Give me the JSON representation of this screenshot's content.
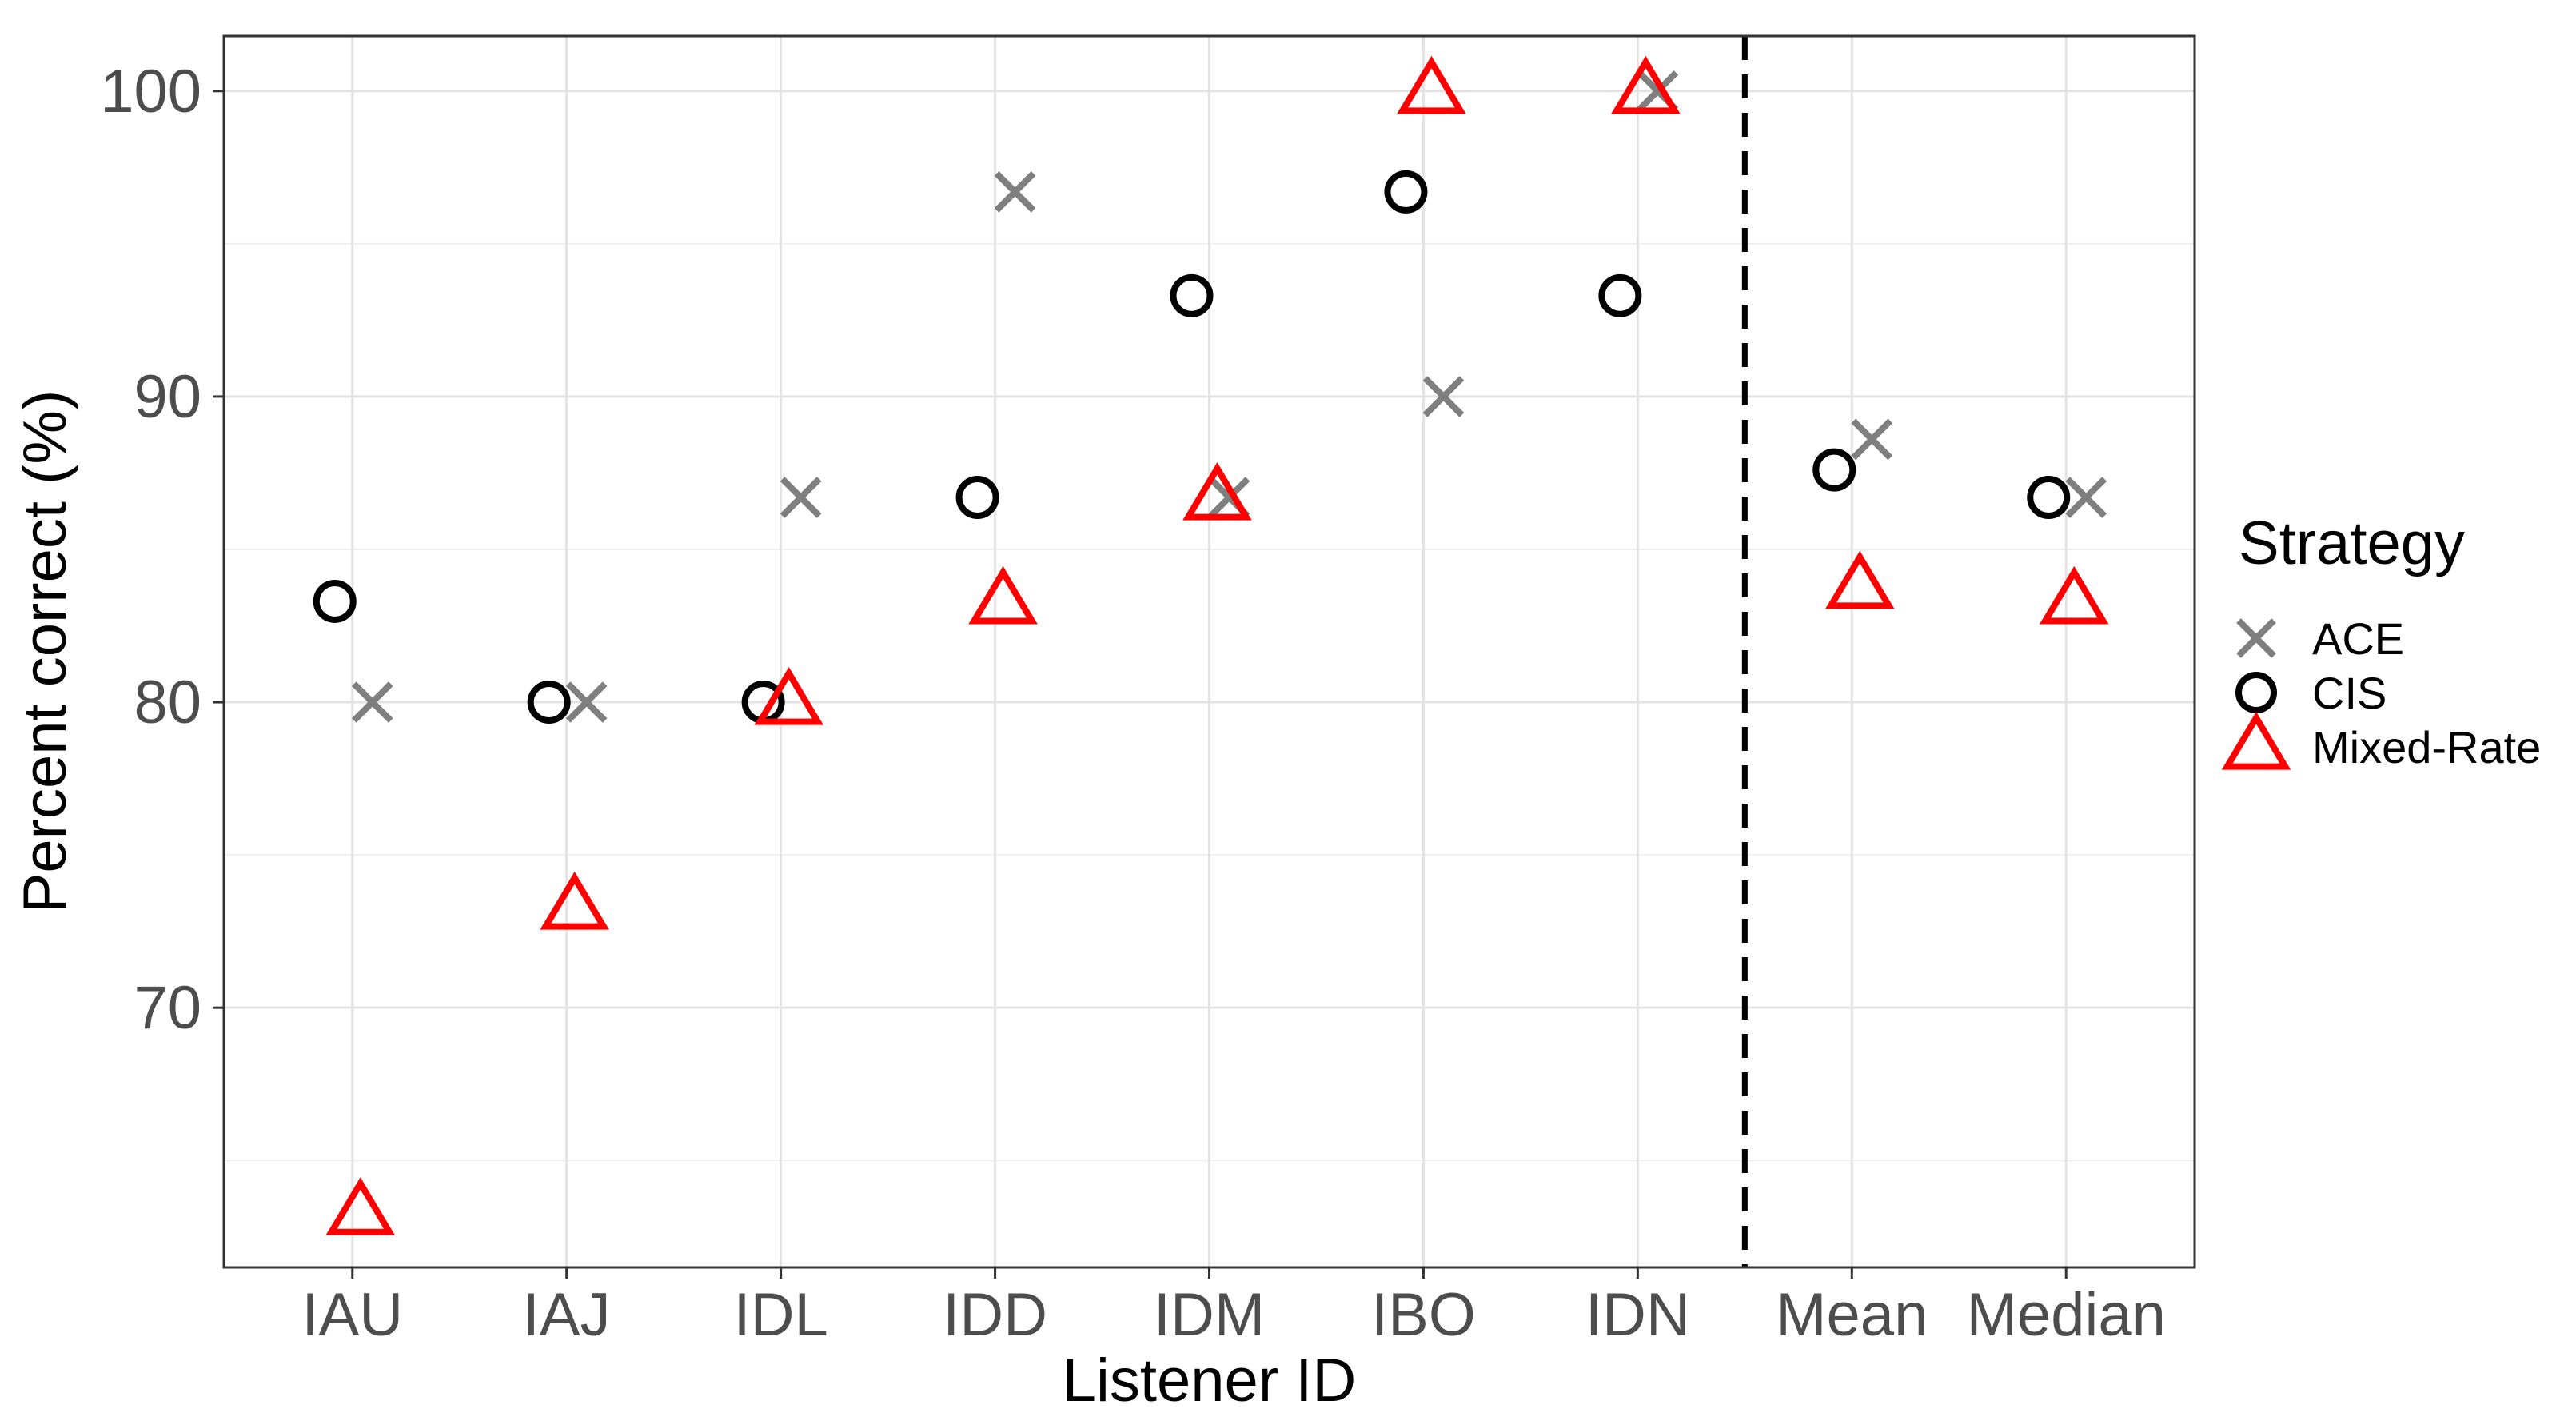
{
  "chart_data": {
    "type": "scatter",
    "xlabel": "Listener ID",
    "ylabel": "Percent correct (%)",
    "categories": [
      "IAU",
      "IAJ",
      "IDL",
      "IDD",
      "IDM",
      "IBO",
      "IDN",
      "Mean",
      "Median"
    ],
    "ylim": [
      61.5,
      101.8
    ],
    "yticks": [
      70,
      80,
      90,
      100
    ],
    "grid": true,
    "separator_after_category": "IDN",
    "legend": {
      "title": "Strategy",
      "position": "right"
    },
    "series": [
      {
        "name": "ACE",
        "marker": "x",
        "color": "#7f7f7f",
        "values": [
          80.0,
          80.0,
          86.7,
          96.7,
          86.7,
          90.0,
          100.0,
          88.6,
          86.7
        ]
      },
      {
        "name": "CIS",
        "marker": "circle",
        "color": "#000000",
        "values": [
          83.3,
          80.0,
          80.0,
          86.7,
          93.3,
          96.7,
          93.3,
          87.6,
          86.7
        ]
      },
      {
        "name": "Mixed-Rate",
        "marker": "triangle",
        "color": "#ff0000",
        "values": [
          63.3,
          73.3,
          80.0,
          83.3,
          86.7,
          100.0,
          100.0,
          83.8,
          83.3
        ]
      }
    ]
  }
}
